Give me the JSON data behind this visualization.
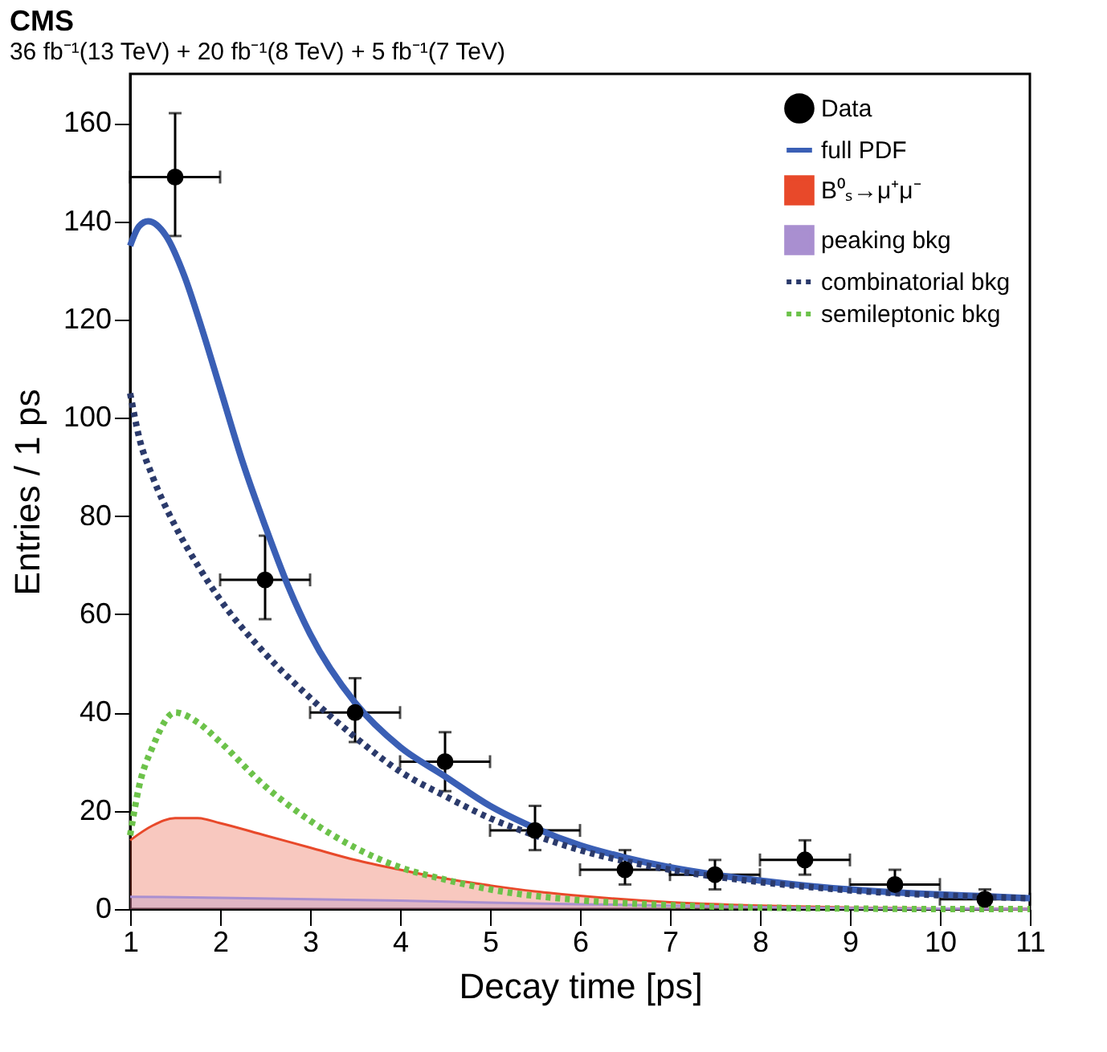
{
  "chart_data": {
    "type": "line",
    "title": "CMS",
    "subtitle": "36 fb⁻¹(13 TeV) + 20 fb⁻¹(8 TeV) + 5 fb⁻¹(7 TeV)",
    "xlabel": "Decay time [ps]",
    "ylabel": "Entries / 1 ps",
    "xlim": [
      1,
      11
    ],
    "xticks": [
      1,
      2,
      3,
      4,
      5,
      6,
      7,
      8,
      9,
      10,
      11
    ],
    "ylim": [
      0,
      170
    ],
    "yticks": [
      0,
      20,
      40,
      60,
      80,
      100,
      120,
      140,
      160
    ],
    "grid": false,
    "legend": "top right",
    "series": [
      {
        "name": "Data",
        "type": "scatter",
        "marker": "circle",
        "color": "#000000",
        "x": [
          1.5,
          2.5,
          3.5,
          4.5,
          5.5,
          6.5,
          7.5,
          8.5,
          9.5,
          10.5
        ],
        "values": [
          149,
          67,
          40,
          30,
          16,
          8,
          7,
          10,
          5,
          2
        ],
        "errors": [
          [
            137,
            162
          ],
          [
            59,
            76
          ],
          [
            34,
            47
          ],
          [
            24,
            36
          ],
          [
            12,
            21
          ],
          [
            5,
            12
          ],
          [
            4,
            10
          ],
          [
            7,
            14
          ],
          [
            3,
            8
          ],
          [
            1,
            4
          ]
        ],
        "xerrors": [
          0.5,
          0.5,
          0.5,
          0.5,
          0.5,
          0.5,
          0.5,
          0.5,
          0.5,
          0.5
        ]
      },
      {
        "name": "full PDF",
        "line_style": "solid",
        "color": "#3a5fb5",
        "x": [
          1,
          1.1,
          1.2,
          1.4,
          1.6,
          1.8,
          2,
          2.25,
          2.5,
          2.75,
          3,
          3.5,
          4,
          4.5,
          5,
          5.5,
          6,
          6.5,
          7,
          7.5,
          8,
          8.5,
          9,
          9.5,
          10,
          10.5,
          11
        ],
        "values": [
          135,
          139,
          140,
          137,
          129,
          118,
          106,
          91,
          78,
          66,
          56,
          42,
          33,
          27,
          21,
          16.5,
          13,
          10.5,
          8.5,
          7,
          5.8,
          4.8,
          4,
          3.4,
          3,
          2.6,
          2.2
        ]
      },
      {
        "name": "B⁰ₛ→μ⁺μ⁻",
        "type": "area",
        "color": "#e8492a",
        "x": [
          1,
          1.25,
          1.5,
          1.75,
          2,
          2.5,
          3,
          3.5,
          4,
          4.5,
          5,
          5.5,
          6,
          7,
          8,
          9,
          10,
          11
        ],
        "values": [
          14,
          17,
          18.5,
          18.5,
          17.5,
          15,
          12.5,
          10,
          8,
          6.2,
          4.8,
          3.6,
          2.7,
          1.4,
          0.7,
          0.3,
          0.1,
          0
        ]
      },
      {
        "name": "peaking bkg",
        "type": "area",
        "color": "#a98fd0",
        "x": [
          1,
          2,
          3,
          4,
          5,
          6,
          7,
          8,
          9,
          10,
          11
        ],
        "values": [
          2.5,
          2.3,
          2,
          1.7,
          1.3,
          1,
          0.7,
          0.4,
          0.2,
          0.1,
          0
        ]
      },
      {
        "name": "combinatorial bkg",
        "line_style": "dotted",
        "color": "#2b3a6b",
        "x": [
          1,
          1.1,
          1.25,
          1.5,
          1.75,
          2,
          2.5,
          3,
          3.5,
          4,
          4.5,
          5,
          5.5,
          6,
          7,
          8,
          9,
          10,
          11
        ],
        "values": [
          105,
          96,
          88,
          78,
          70,
          63,
          52,
          43,
          35,
          28,
          23,
          18.5,
          15,
          12,
          8,
          5.5,
          3.8,
          2.8,
          2.2
        ]
      },
      {
        "name": "semileptonic bkg",
        "line_style": "dotted",
        "color": "#6cc24a",
        "x": [
          1,
          1.1,
          1.25,
          1.5,
          1.75,
          2,
          2.5,
          3,
          3.5,
          4,
          4.5,
          5,
          6,
          7,
          8,
          9,
          10,
          11
        ],
        "values": [
          15,
          25,
          33,
          40,
          38,
          34,
          25,
          18,
          12.5,
          8.5,
          6,
          4,
          1.8,
          0.8,
          0.3,
          0.1,
          0,
          0
        ]
      }
    ]
  }
}
